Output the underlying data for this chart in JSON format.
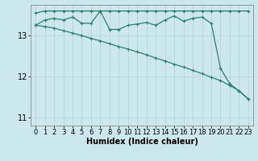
{
  "title": "",
  "xlabel": "Humidex (Indice chaleur)",
  "ylabel": "",
  "bg_color": "#cce8ee",
  "grid_color": "#b0d0d8",
  "line_color": "#2e7d6e",
  "xlim": [
    -0.5,
    23.5
  ],
  "ylim": [
    10.8,
    13.75
  ],
  "yticks": [
    11,
    12,
    13
  ],
  "xticks": [
    0,
    1,
    2,
    3,
    4,
    5,
    6,
    7,
    8,
    9,
    10,
    11,
    12,
    13,
    14,
    15,
    16,
    17,
    18,
    19,
    20,
    21,
    22,
    23
  ],
  "line1_x": [
    0,
    1,
    2,
    3,
    4,
    5,
    6,
    7,
    8,
    9,
    10,
    11,
    12,
    13,
    14,
    15,
    16,
    17,
    18,
    19,
    20,
    21,
    22,
    23
  ],
  "line1_y": [
    13.55,
    13.6,
    13.6,
    13.6,
    13.6,
    13.6,
    13.6,
    13.6,
    13.6,
    13.6,
    13.6,
    13.6,
    13.6,
    13.6,
    13.6,
    13.6,
    13.6,
    13.6,
    13.6,
    13.6,
    13.6,
    13.6,
    13.6,
    13.6
  ],
  "line2_x": [
    0,
    1,
    2,
    3,
    4,
    5,
    6,
    7,
    8,
    9,
    10,
    11,
    12,
    13,
    14,
    15,
    16,
    17,
    18,
    19,
    20,
    21,
    22,
    23
  ],
  "line2_y": [
    13.25,
    13.38,
    13.42,
    13.38,
    13.45,
    13.3,
    13.3,
    13.6,
    13.15,
    13.15,
    13.25,
    13.28,
    13.32,
    13.25,
    13.38,
    13.48,
    13.35,
    13.42,
    13.45,
    13.3,
    12.2,
    11.82,
    11.65,
    11.45
  ],
  "line3_x": [
    0,
    1,
    2,
    3,
    4,
    5,
    6,
    7,
    8,
    9,
    10,
    11,
    12,
    13,
    14,
    15,
    16,
    17,
    18,
    19,
    20,
    21,
    22,
    23
  ],
  "line3_y": [
    13.25,
    13.22,
    13.18,
    13.12,
    13.06,
    13.0,
    12.93,
    12.87,
    12.8,
    12.73,
    12.67,
    12.6,
    12.53,
    12.45,
    12.38,
    12.3,
    12.23,
    12.15,
    12.07,
    11.98,
    11.9,
    11.78,
    11.65,
    11.45
  ],
  "marker_size": 3,
  "line_width": 0.9,
  "tick_fontsize": 6,
  "xlabel_fontsize": 7
}
